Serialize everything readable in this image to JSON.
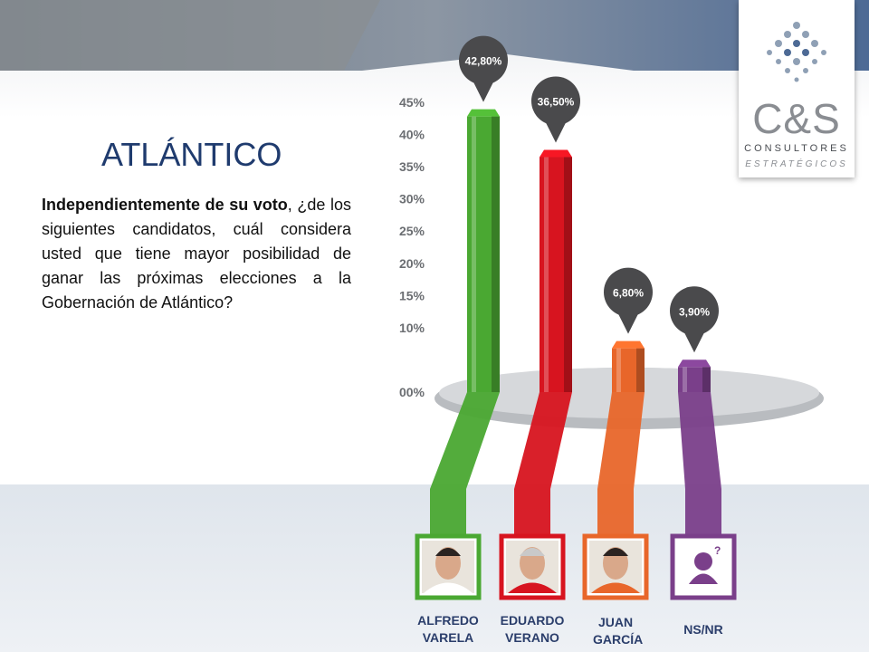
{
  "title": "ATLÁNTICO",
  "question_bold": "Independientemente de su voto",
  "question_rest": ", ¿de los siguientes candidatos, cuál considera usted que tiene mayor posibilidad de ganar las próximas elecciones a la Gobernación de Atlántico?",
  "logo": {
    "name": "C&S",
    "line1": "CONSULTORES",
    "line2": "ESTRATÉGICOS"
  },
  "chart_data": {
    "type": "bar",
    "categories": [
      "ALFREDO VARELA",
      "EDUARDO VERANO",
      "JUAN GARCÍA",
      "NS/NR"
    ],
    "values": [
      42.8,
      36.5,
      6.8,
      3.9
    ],
    "value_labels": [
      "42,80%",
      "36,50%",
      "6,80%",
      "3,90%"
    ],
    "colors": [
      "#4aa832",
      "#d7141f",
      "#e8662a",
      "#7a3f8a"
    ],
    "ylim": [
      0,
      45
    ],
    "yticks": [
      {
        "value": 0,
        "label": "00%"
      },
      {
        "value": 10,
        "label": "10%"
      },
      {
        "value": 15,
        "label": "15%"
      },
      {
        "value": 20,
        "label": "20%"
      },
      {
        "value": 25,
        "label": "25%"
      },
      {
        "value": 30,
        "label": "30%"
      },
      {
        "value": 35,
        "label": "35%"
      },
      {
        "value": 40,
        "label": "40%"
      },
      {
        "value": 45,
        "label": "45%"
      }
    ]
  }
}
